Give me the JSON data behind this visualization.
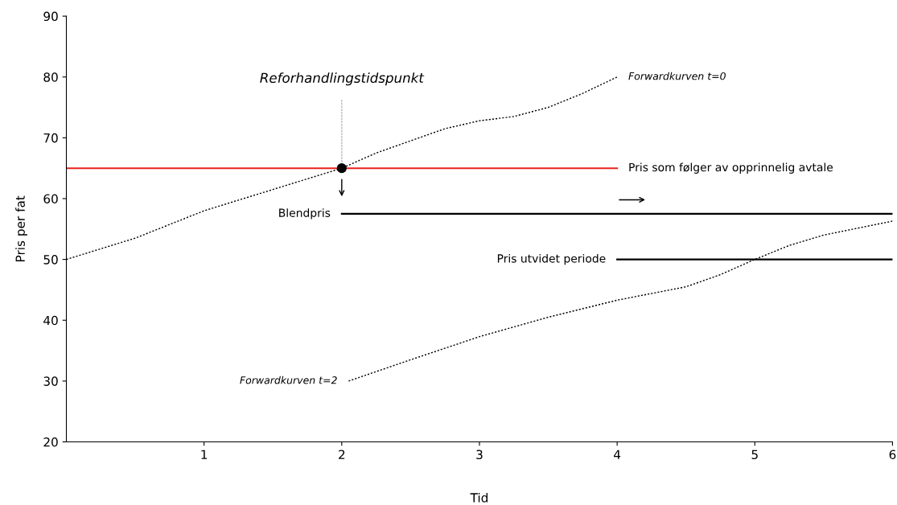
{
  "chart_data": {
    "type": "line",
    "xlabel": "Tid",
    "ylabel": "Pris per fat",
    "xlim": [
      0,
      6
    ],
    "xticks": [
      1,
      2,
      3,
      4,
      5,
      6
    ],
    "ylim": [
      20,
      90
    ],
    "yticks": [
      20,
      30,
      40,
      50,
      60,
      70,
      80,
      90
    ],
    "grid": false,
    "legend": false,
    "series": [
      {
        "color": "#000000",
        "line_style": "dotted",
        "x": [
          0,
          0.5,
          1,
          1.5,
          2,
          2.25,
          2.5,
          2.75,
          3,
          3.25,
          3.5,
          3.75,
          4
        ],
        "values": [
          50,
          53.5,
          58,
          61.5,
          65,
          67.5,
          69.5,
          71.5,
          72.8,
          73.5,
          75,
          77.3,
          80
        ]
      },
      {
        "color": "#000000",
        "line_style": "dotted",
        "x": [
          2.05,
          2.5,
          3,
          3.5,
          4,
          4.5,
          4.75,
          5,
          5.25,
          5.5,
          6
        ],
        "values": [
          30,
          33.5,
          37.3,
          40.5,
          43.3,
          45.5,
          47.5,
          50,
          52.3,
          54,
          56.3
        ]
      },
      {
        "color": "#e8221b",
        "line_style": "solid",
        "x": [
          0,
          4
        ],
        "values": [
          65,
          65
        ]
      },
      {
        "color": "#000000",
        "line_style": "solid",
        "x": [
          2,
          6
        ],
        "values": [
          57.5,
          57.5
        ]
      },
      {
        "color": "#000000",
        "line_style": "solid",
        "x": [
          4,
          6
        ],
        "values": [
          50,
          50
        ]
      },
      {
        "color": "#bbbbbb",
        "line_style": "dashed",
        "x": [
          2,
          2
        ],
        "values": [
          65,
          76.4
        ]
      },
      {
        "type": "scatter",
        "color": "#000000",
        "marker": "circle",
        "x": [
          2
        ],
        "values": [
          65
        ]
      }
    ],
    "annotations": [
      "Reforhandlingstidspunkt",
      {
        "text": "Forwardkurven t=0",
        "x": 4,
        "y": 80
      },
      {
        "text": "Pris som følger av opprinnelig avtale",
        "x": 4,
        "y": 65
      },
      {
        "text": "Blendpris",
        "x": 2,
        "y": 57.5
      },
      {
        "text": "Pris utvidet periode",
        "x": 4,
        "y": 50
      },
      {
        "text": "Forwardkurven t=2",
        "x": 2.05,
        "y": 30
      }
    ]
  }
}
